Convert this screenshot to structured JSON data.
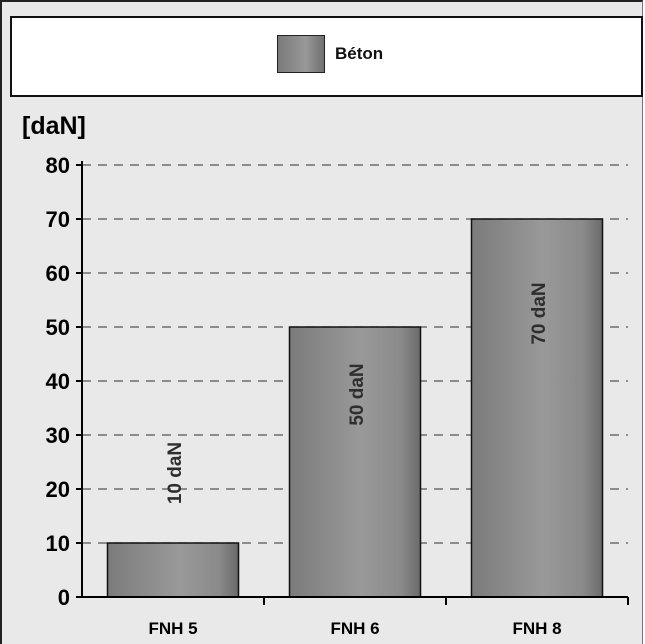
{
  "legend": {
    "label": "Béton"
  },
  "unit_label": "[daN]",
  "colors": {
    "bar": "#8c8c8c",
    "bar_dark": "#6f6f6f",
    "grid": "#555555",
    "background": "#e9e9e9"
  },
  "chart_data": {
    "type": "bar",
    "categories": [
      "FNH 5",
      "FNH 6",
      "FNH 8"
    ],
    "series": [
      {
        "name": "Béton",
        "values": [
          10,
          50,
          70
        ]
      }
    ],
    "data_labels": [
      "10 daN",
      "50 daN",
      "70 daN"
    ],
    "ylabel": "[daN]",
    "ylim": [
      0,
      80
    ],
    "yticks": [
      0,
      10,
      20,
      30,
      40,
      50,
      60,
      70,
      80
    ],
    "grid": true,
    "legend_position": "top"
  }
}
